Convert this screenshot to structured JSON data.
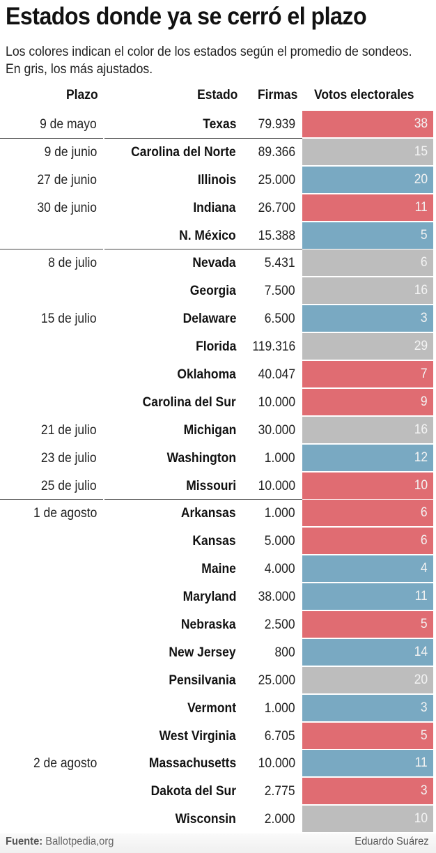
{
  "header": {
    "title": "Estados donde ya se cerró el plazo",
    "subtitle": "Los colores indican el color de los estados según el promedio de sondeos. En gris, los más ajustados."
  },
  "columns": {
    "plazo": "Plazo",
    "estado": "Estado",
    "firmas": "Firmas",
    "votos": "Votos electorales"
  },
  "colors": {
    "rep": "#e06c72",
    "dem": "#79a9c2",
    "toss": "#bdbdbd"
  },
  "footer": {
    "source_label": "Fuente:",
    "source": "Ballotpedia,org",
    "author": "Eduardo Suárez"
  },
  "chart_data": {
    "type": "table",
    "title": "Estados donde ya se cerró el plazo",
    "subtitle": "Los colores indican el color de los estados según el promedio de sondeos. En gris, los más ajustados.",
    "columns": [
      "Plazo",
      "Estado",
      "Firmas",
      "Votos electorales"
    ],
    "legend": {
      "rep": "rojo (republicano)",
      "dem": "azul (demócrata)",
      "toss": "gris (más ajustados)"
    },
    "rows": [
      {
        "plazo": "9 de mayo",
        "estado": "Texas",
        "firmas": "79.939",
        "votos": 38,
        "lean": "rep",
        "group_start": false
      },
      {
        "plazo": "9 de junio",
        "estado": "Carolina del Norte",
        "firmas": "89.366",
        "votos": 15,
        "lean": "toss",
        "group_start": true
      },
      {
        "plazo": "27 de junio",
        "estado": "Illinois",
        "firmas": "25.000",
        "votos": 20,
        "lean": "dem",
        "group_start": false
      },
      {
        "plazo": "30 de junio",
        "estado": "Indiana",
        "firmas": "26.700",
        "votos": 11,
        "lean": "rep",
        "group_start": false
      },
      {
        "plazo": "",
        "estado": "N. México",
        "firmas": "15.388",
        "votos": 5,
        "lean": "dem",
        "group_start": false
      },
      {
        "plazo": "8 de julio",
        "estado": "Nevada",
        "firmas": "5.431",
        "votos": 6,
        "lean": "toss",
        "group_start": true
      },
      {
        "plazo": "",
        "estado": "Georgia",
        "firmas": "7.500",
        "votos": 16,
        "lean": "toss",
        "group_start": false
      },
      {
        "plazo": "15 de julio",
        "estado": "Delaware",
        "firmas": "6.500",
        "votos": 3,
        "lean": "dem",
        "group_start": false
      },
      {
        "plazo": "",
        "estado": "Florida",
        "firmas": "119.316",
        "votos": 29,
        "lean": "toss",
        "group_start": false
      },
      {
        "plazo": "",
        "estado": "Oklahoma",
        "firmas": "40.047",
        "votos": 7,
        "lean": "rep",
        "group_start": false
      },
      {
        "plazo": "",
        "estado": "Carolina del Sur",
        "firmas": "10.000",
        "votos": 9,
        "lean": "rep",
        "group_start": false
      },
      {
        "plazo": "21 de julio",
        "estado": "Michigan",
        "firmas": "30.000",
        "votos": 16,
        "lean": "toss",
        "group_start": false
      },
      {
        "plazo": "23 de julio",
        "estado": "Washington",
        "firmas": "1.000",
        "votos": 12,
        "lean": "dem",
        "group_start": false
      },
      {
        "plazo": "25 de julio",
        "estado": "Missouri",
        "firmas": "10.000",
        "votos": 10,
        "lean": "rep",
        "group_start": false
      },
      {
        "plazo": "1 de agosto",
        "estado": "Arkansas",
        "firmas": "1.000",
        "votos": 6,
        "lean": "rep",
        "group_start": true
      },
      {
        "plazo": "",
        "estado": "Kansas",
        "firmas": "5.000",
        "votos": 6,
        "lean": "rep",
        "group_start": false
      },
      {
        "plazo": "",
        "estado": "Maine",
        "firmas": "4.000",
        "votos": 4,
        "lean": "dem",
        "group_start": false
      },
      {
        "plazo": "",
        "estado": "Maryland",
        "firmas": "38.000",
        "votos": 11,
        "lean": "dem",
        "group_start": false
      },
      {
        "plazo": "",
        "estado": "Nebraska",
        "firmas": "2.500",
        "votos": 5,
        "lean": "rep",
        "group_start": false
      },
      {
        "plazo": "",
        "estado": "New Jersey",
        "firmas": "800",
        "votos": 14,
        "lean": "dem",
        "group_start": false
      },
      {
        "plazo": "",
        "estado": "Pensilvania",
        "firmas": "25.000",
        "votos": 20,
        "lean": "toss",
        "group_start": false
      },
      {
        "plazo": "",
        "estado": "Vermont",
        "firmas": "1.000",
        "votos": 3,
        "lean": "dem",
        "group_start": false
      },
      {
        "plazo": "",
        "estado": "West Virginia",
        "firmas": "6.705",
        "votos": 5,
        "lean": "rep",
        "group_start": false
      },
      {
        "plazo": "2 de agosto",
        "estado": "Massachusetts",
        "firmas": "10.000",
        "votos": 11,
        "lean": "dem",
        "group_start": false
      },
      {
        "plazo": "",
        "estado": "Dakota del Sur",
        "firmas": "2.775",
        "votos": 3,
        "lean": "rep",
        "group_start": false
      },
      {
        "plazo": "",
        "estado": "Wisconsin",
        "firmas": "2.000",
        "votos": 10,
        "lean": "toss",
        "group_start": false
      }
    ]
  }
}
